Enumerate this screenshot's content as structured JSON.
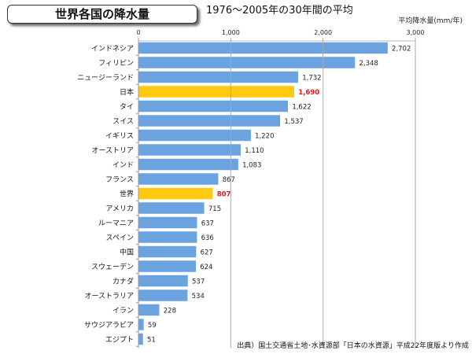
{
  "title": "世界各国の降水量",
  "subtitle": "1976～2005年の30年間の平均",
  "unit_label": "平均降水量(mm/年)",
  "source": "出典）国土交通省土地･水資源部「日本の水資源」平成22年度版より作成",
  "colors": {
    "bar": "#6aa3e0",
    "highlight": "#ffc90e",
    "highlight_label": "#e8141e"
  },
  "chart_data": {
    "type": "bar",
    "orientation": "horizontal",
    "title": "世界各国の降水量",
    "subtitle": "1976～2005年の30年間の平均",
    "xlabel": "平均降水量(mm/年)",
    "xlim": [
      0,
      3000
    ],
    "xticks": [
      0,
      1000,
      2000,
      3000
    ],
    "xtick_labels": [
      "0",
      "1,000",
      "2,000",
      "3,000"
    ],
    "grid": true,
    "categories": [
      "インドネシア",
      "フィリピン",
      "ニュージーランド",
      "日本",
      "タイ",
      "スイス",
      "イギリス",
      "オーストリア",
      "インド",
      "フランス",
      "世界",
      "アメリカ",
      "ルーマニア",
      "スペイン",
      "中国",
      "スウェーデン",
      "カナダ",
      "オーストラリア",
      "イラン",
      "サウジアラビア",
      "エジプト"
    ],
    "values": [
      2702,
      2348,
      1732,
      1690,
      1622,
      1537,
      1220,
      1110,
      1083,
      867,
      807,
      715,
      637,
      636,
      627,
      624,
      537,
      534,
      228,
      59,
      51
    ],
    "value_labels": [
      "2,702",
      "2,348",
      "1,732",
      "1,690",
      "1,622",
      "1,537",
      "1,220",
      "1,110",
      "1,083",
      "867",
      "807",
      "715",
      "637",
      "636",
      "627",
      "624",
      "537",
      "534",
      "228",
      "59",
      "51"
    ],
    "highlighted": [
      "日本",
      "世界"
    ]
  }
}
